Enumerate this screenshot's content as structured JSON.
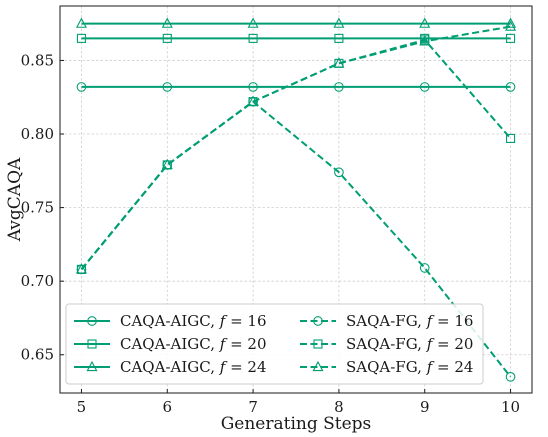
{
  "chart_data": {
    "type": "line",
    "xlabel": "Generating Steps",
    "ylabel": "AvgCAQA",
    "x": [
      5,
      6,
      7,
      8,
      9,
      10
    ],
    "x_ticks": [
      5,
      6,
      7,
      8,
      9,
      10
    ],
    "y_ticks": [
      0.65,
      0.7,
      0.75,
      0.8,
      0.85
    ],
    "xlim": [
      4.75,
      10.25
    ],
    "ylim": [
      0.624,
      0.887
    ],
    "grid": true,
    "legend_position": "lower-left",
    "legend_columns": 2,
    "color": "#009e73",
    "series": [
      {
        "name": "CAQA-AIGC, f = 16",
        "marker": "circle",
        "linestyle": "solid",
        "values": [
          0.832,
          0.832,
          0.832,
          0.832,
          0.832,
          0.832
        ]
      },
      {
        "name": "CAQA-AIGC, f = 20",
        "marker": "square",
        "linestyle": "solid",
        "values": [
          0.865,
          0.865,
          0.865,
          0.865,
          0.865,
          0.865
        ]
      },
      {
        "name": "CAQA-AIGC, f = 24",
        "marker": "triangle",
        "linestyle": "solid",
        "values": [
          0.875,
          0.875,
          0.875,
          0.875,
          0.875,
          0.875
        ]
      },
      {
        "name": "SAQA-FG, f = 16",
        "marker": "circle",
        "linestyle": "dashed",
        "values": [
          0.708,
          0.779,
          0.822,
          0.774,
          0.709,
          0.635
        ]
      },
      {
        "name": "SAQA-FG, f = 20",
        "marker": "square",
        "linestyle": "dashed",
        "values": [
          0.708,
          0.779,
          0.822,
          0.848,
          0.864,
          0.797
        ]
      },
      {
        "name": "SAQA-FG, f = 24",
        "marker": "triangle",
        "linestyle": "dashed",
        "values": [
          0.708,
          0.779,
          0.822,
          0.848,
          0.863,
          0.873
        ]
      }
    ]
  }
}
